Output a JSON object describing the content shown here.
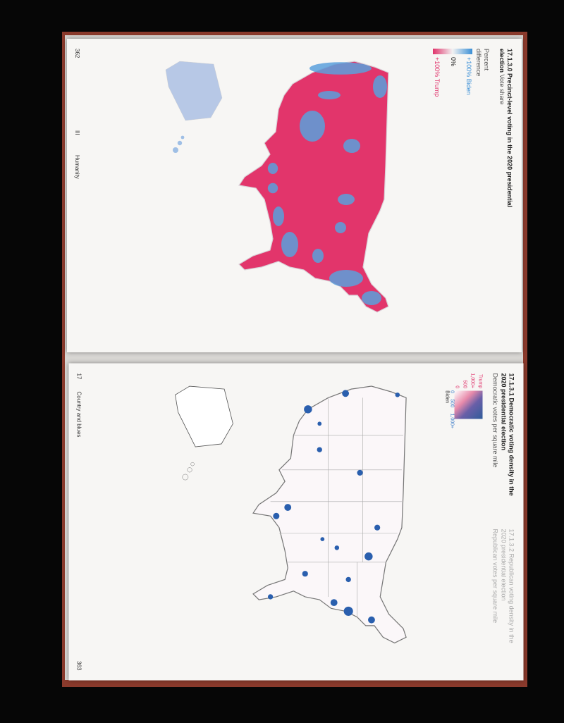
{
  "pages": [
    {
      "page_number": "362",
      "section": "III",
      "running_head": "Humanity",
      "figure": {
        "id": "17.1.3.0",
        "title": "Precinct-level voting in the 2020 presidential election",
        "subtitle": "Vote share",
        "legend": {
          "title": "Percent difference",
          "labels": [
            "+100% Biden",
            "0%",
            "+100% Trump"
          ]
        }
      }
    },
    {
      "page_number": "363",
      "section": "17",
      "running_head": "Country and blues",
      "figures": [
        {
          "id": "17.1.3.1",
          "title": "Democratic voting density in the 2020 presidential election",
          "subtitle": "Democratic votes per square mile",
          "legend": {
            "x_title": "Biden",
            "x_ticks": [
              "0",
              "500",
              "1,000+"
            ],
            "y_title": "Trump",
            "y_ticks": [
              "0",
              "500",
              "1,000+"
            ]
          }
        },
        {
          "id": "17.1.3.2",
          "title": "Republican voting density in the 2020 presidential election",
          "subtitle": "Republican votes per square mile"
        }
      ]
    }
  ]
}
